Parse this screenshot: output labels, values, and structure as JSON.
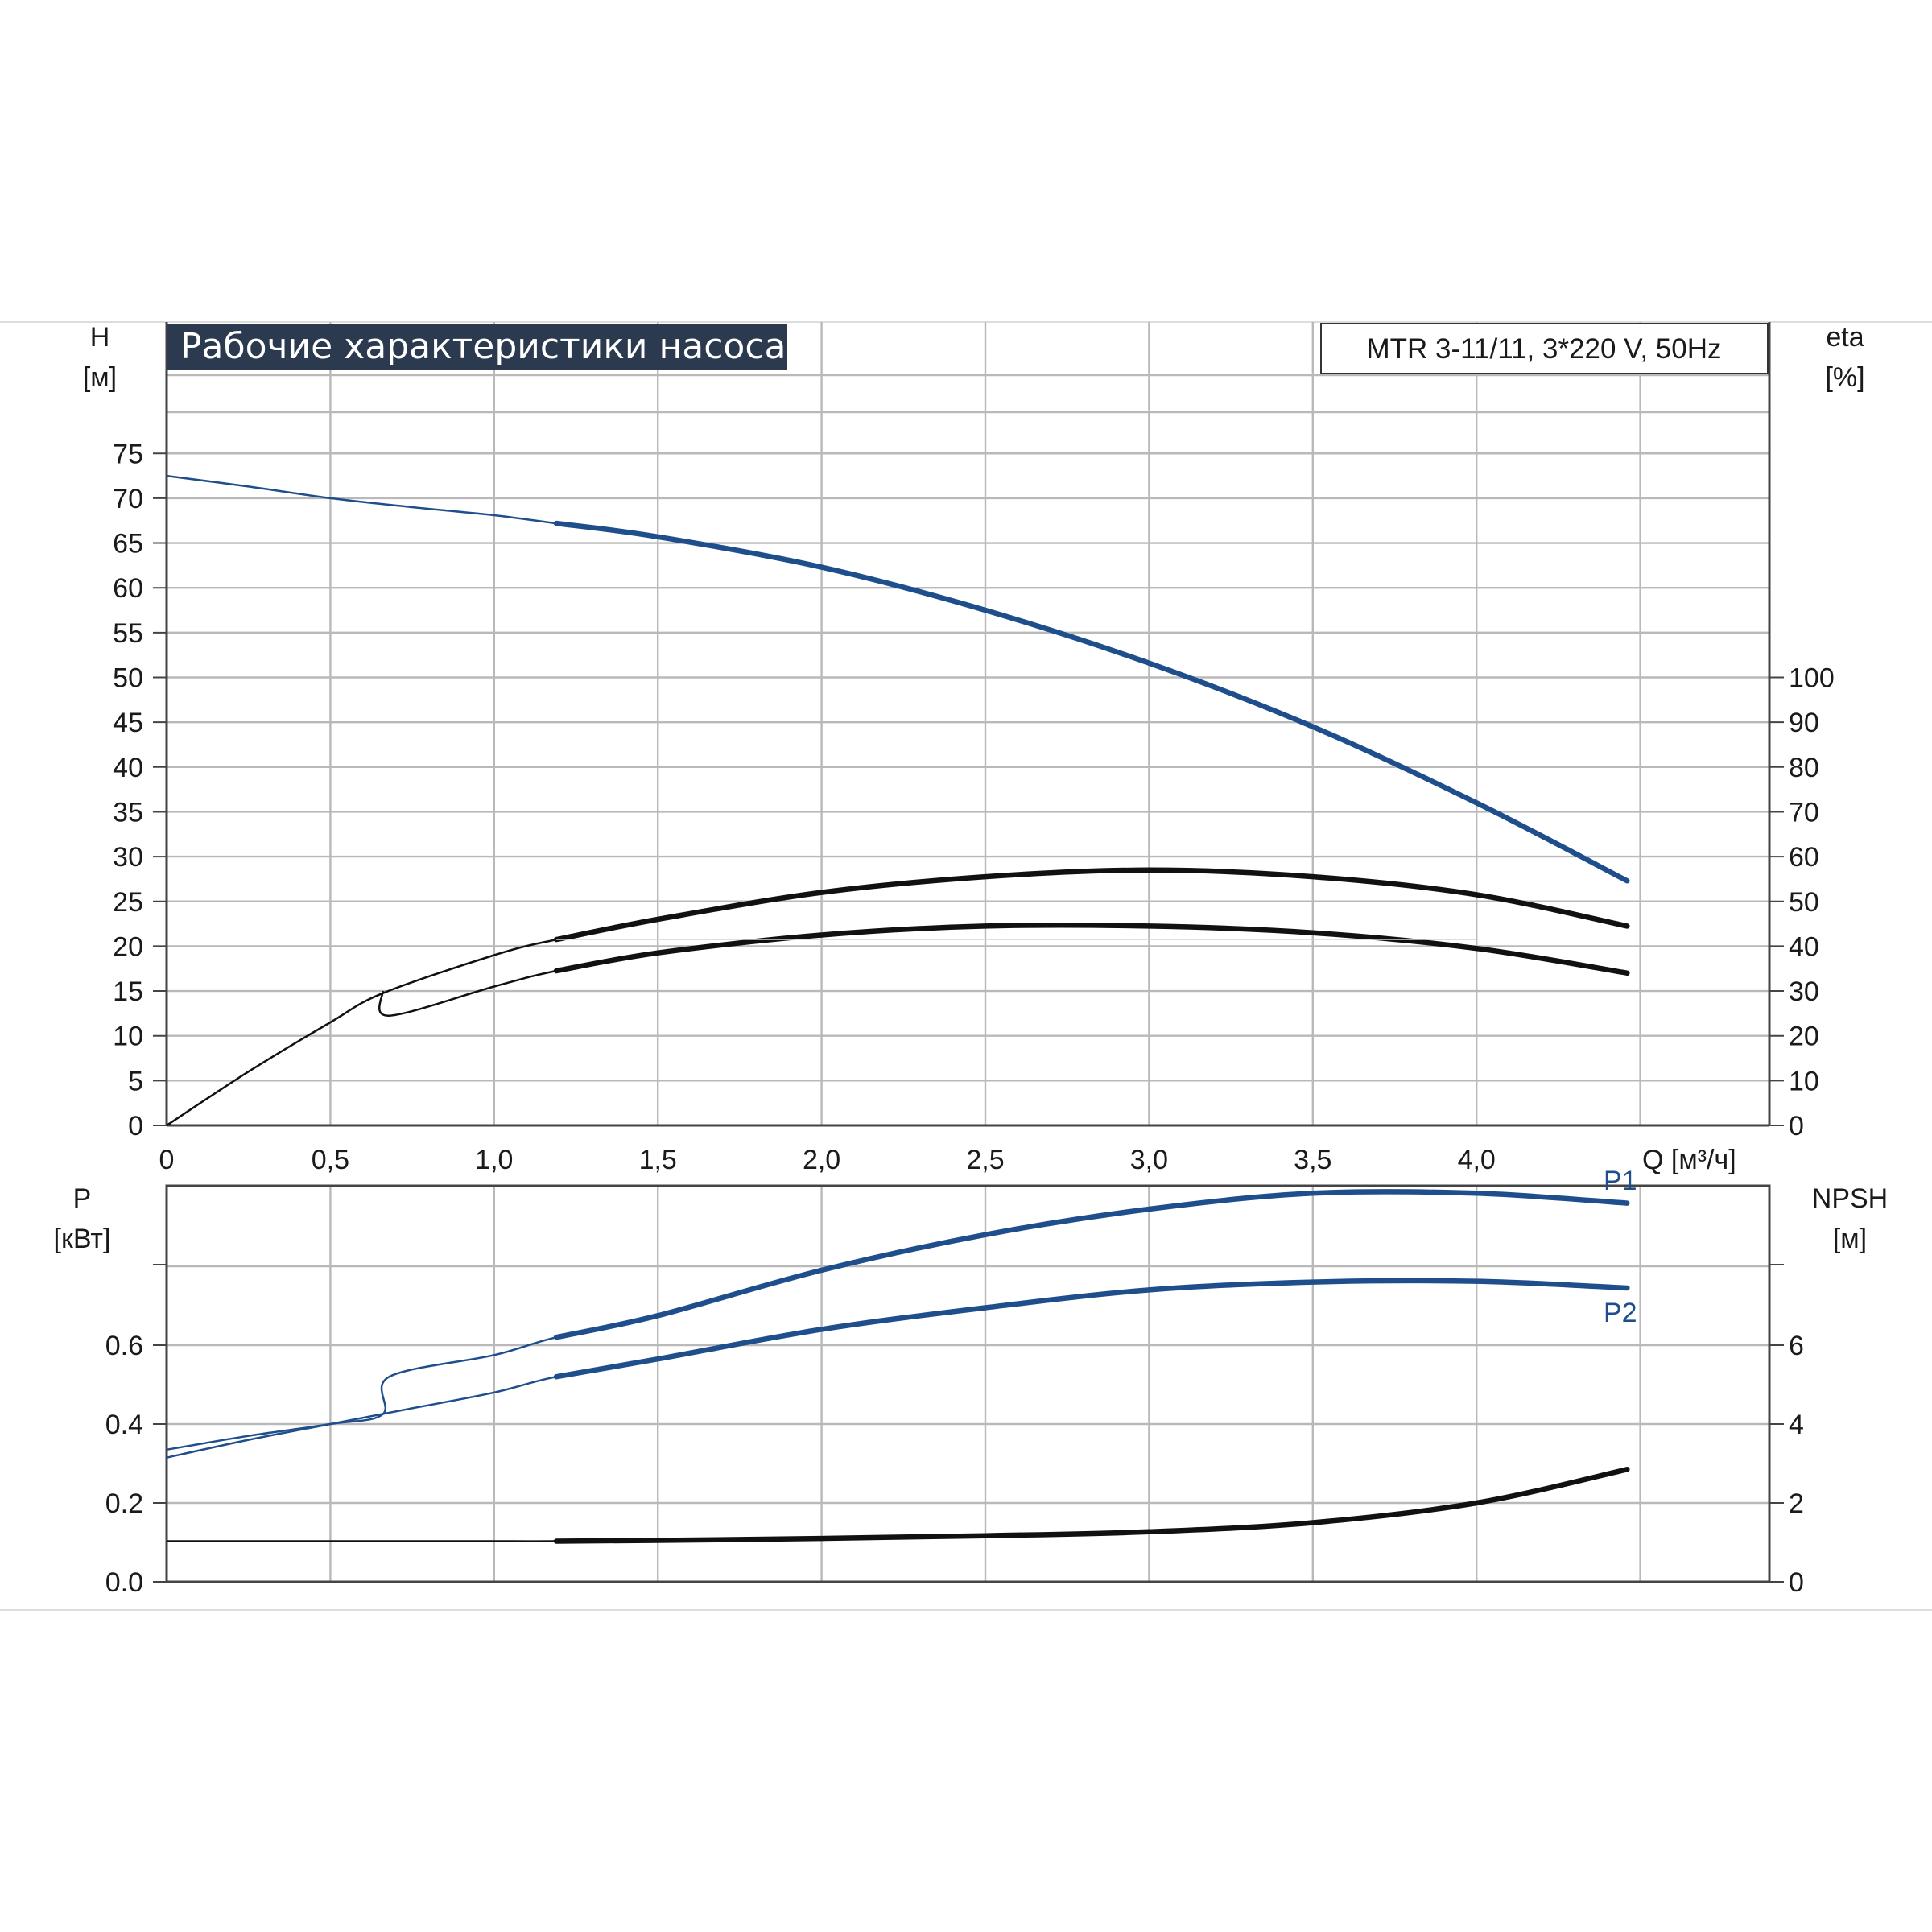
{
  "title": "Рабочие характеристики насоса",
  "model_label": "MTR 3-11/11, 3*220 V, 50Hz",
  "colors": {
    "blue": "#1f4e8c",
    "black": "#111111",
    "grid": "#b9b9b9",
    "title_bg": "#2b3a4f"
  },
  "chart_data": [
    {
      "type": "line",
      "title": "Рабочие характеристики насоса",
      "xlabel": "Q [м³/ч]",
      "xlim": [
        0,
        4.9
      ],
      "xticks": [
        "0",
        "0,5",
        "1,0",
        "1,5",
        "2,0",
        "2,5",
        "3,0",
        "3,5",
        "4,0"
      ],
      "y_left": {
        "label_line1": "H",
        "label_line2": "[м]",
        "ylim": [
          0,
          75
        ],
        "ticks": [
          "0",
          "5",
          "10",
          "15",
          "20",
          "25",
          "30",
          "35",
          "40",
          "45",
          "50",
          "55",
          "60",
          "65",
          "70",
          "75"
        ]
      },
      "y_right": {
        "label_line1": "eta",
        "label_line2": "[%]",
        "ylim": [
          0,
          100
        ],
        "ticks": [
          "0",
          "10",
          "20",
          "30",
          "40",
          "50",
          "60",
          "70",
          "80",
          "90",
          "100"
        ]
      },
      "grid": true,
      "series": [
        {
          "axis": "left",
          "color": "blue",
          "duty_from": 1.19,
          "x": [
            0,
            0.25,
            0.5,
            0.75,
            1.0,
            1.19,
            1.5,
            2.0,
            2.5,
            3.0,
            3.5,
            4.0,
            4.46
          ],
          "values": [
            72.5,
            71.3,
            70.0,
            69.0,
            68.1,
            67.2,
            65.7,
            62.3,
            57.5,
            51.6,
            44.5,
            36.0,
            27.3
          ]
        },
        {
          "axis": "right",
          "color": "black",
          "duty_from": 1.19,
          "x": [
            0,
            0.25,
            0.5,
            0.66,
            1.0,
            1.19,
            1.5,
            2.0,
            2.5,
            3.0,
            3.5,
            4.0,
            4.46
          ],
          "values": [
            0,
            12.0,
            23.0,
            29.5,
            38.0,
            41.5,
            46.0,
            52.0,
            55.5,
            57.0,
            55.5,
            51.5,
            44.5
          ]
        },
        {
          "axis": "right",
          "color": "black",
          "duty_from": 1.19,
          "x": [
            0.66,
            0.68,
            1.0,
            1.19,
            1.5,
            2.0,
            2.5,
            3.0,
            3.5,
            4.0,
            4.46
          ],
          "values": [
            30.0,
            24.5,
            31.0,
            34.5,
            38.5,
            42.5,
            44.5,
            44.5,
            43.0,
            39.5,
            34.0
          ]
        }
      ]
    },
    {
      "type": "line",
      "xlim": [
        0,
        4.9
      ],
      "y_left": {
        "label_line1": "P",
        "label_line2": "[кВт]",
        "ylim": [
          0,
          1.0
        ],
        "ticks": [
          "0.0",
          "0.2",
          "0.4",
          "0.6"
        ]
      },
      "y_right": {
        "label_line1": "NPSH",
        "label_line2": "[м]",
        "ylim": [
          0,
          10
        ],
        "ticks": [
          "0",
          "2",
          "4",
          "6"
        ]
      },
      "grid": true,
      "series": [
        {
          "name": "P1",
          "axis": "left",
          "color": "blue",
          "duty_from": 1.19,
          "x": [
            0,
            0.25,
            0.5,
            0.66,
            0.68,
            1.0,
            1.19,
            1.5,
            2.0,
            2.5,
            3.0,
            3.5,
            4.0,
            4.46
          ],
          "values": [
            0.335,
            0.37,
            0.4,
            0.425,
            0.52,
            0.575,
            0.62,
            0.675,
            0.79,
            0.88,
            0.945,
            0.985,
            0.985,
            0.96
          ]
        },
        {
          "name": "P2",
          "axis": "left",
          "color": "blue",
          "duty_from": 1.19,
          "x": [
            0,
            0.25,
            0.5,
            0.75,
            1.0,
            1.19,
            1.5,
            2.0,
            2.5,
            3.0,
            3.5,
            4.0,
            4.46
          ],
          "values": [
            0.315,
            0.36,
            0.4,
            0.44,
            0.48,
            0.52,
            0.565,
            0.64,
            0.695,
            0.74,
            0.76,
            0.762,
            0.745
          ]
        },
        {
          "axis": "right",
          "color": "black",
          "duty_from": 1.19,
          "x": [
            0,
            0.5,
            1.0,
            1.19,
            1.5,
            2.0,
            2.5,
            3.0,
            3.5,
            4.0,
            4.46
          ],
          "values": [
            1.03,
            1.03,
            1.03,
            1.03,
            1.05,
            1.1,
            1.17,
            1.27,
            1.5,
            2.0,
            2.85
          ]
        }
      ]
    }
  ]
}
